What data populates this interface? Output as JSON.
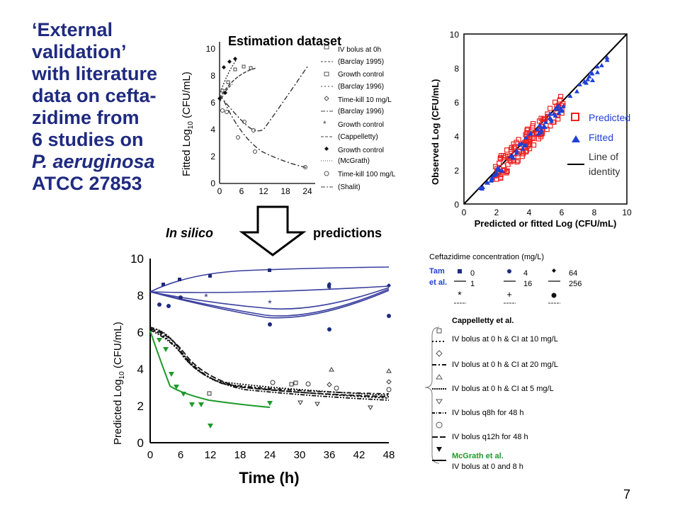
{
  "title_lines": [
    "‘External",
    "validation’",
    "with literature",
    "data on cefta-",
    "zidime from",
    "6 studies on",
    "P. aeruginosa",
    "ATCC 27853"
  ],
  "estimation": {
    "heading": "Estimation dataset",
    "ylabel_main": "Fitted Log",
    "ylabel_sub": "10",
    "ylabel_unit": " (CFU/mL)",
    "y_ticks": [
      "0",
      "2",
      "4",
      "6",
      "8",
      "10"
    ],
    "x_ticks": [
      "0",
      "6",
      "12",
      "18",
      "24"
    ],
    "legend": [
      {
        "l1": "IV bolus at 0h",
        "l2": "(Barclay 1995)"
      },
      {
        "l1": "Growth control",
        "l2": "(Barclay 1996)"
      },
      {
        "l1": "Time-kill 10 mg/L",
        "l2": "(Barclay 1996)"
      },
      {
        "l1": "Growth control",
        "l2": "(Cappelletty)"
      },
      {
        "l1": "Growth control",
        "l2": "(McGrath)"
      },
      {
        "l1": "Time-kill 100 mg/L",
        "l2": "(Shalit)"
      }
    ]
  },
  "scatter": {
    "ylabel": "Observed Log (CFU/mL)",
    "xlabel": "Predicted or fitted Log (CFU/mL)",
    "ticks": [
      "0",
      "2",
      "4",
      "6",
      "8",
      "10"
    ],
    "legend": {
      "predicted": "Predicted",
      "fitted": "Fitted",
      "identity_l1": "Line of",
      "identity_l2": "identity"
    },
    "colors": {
      "predicted": "#ee2020",
      "fitted": "#1f3fd6"
    }
  },
  "arrow": {
    "left": "In silico",
    "right": "predictions"
  },
  "prediction": {
    "ylabel_main": "Predicted  Log",
    "ylabel_sub": "10",
    "ylabel_unit": " (CFU/mL)",
    "xlabel": "Time (h)",
    "y_ticks": [
      "0",
      "2",
      "4",
      "6",
      "8",
      "10"
    ],
    "x_ticks": [
      "0",
      "6",
      "12",
      "18",
      "24",
      "30",
      "36",
      "42",
      "48"
    ]
  },
  "right_legend": {
    "conc_title": "Ceftazidime concentration (mg/L)",
    "tam": "Tam",
    "etal": "et al.",
    "c0": "0",
    "c1": "1",
    "c4": "4",
    "c16": "16",
    "c64": "64",
    "c256": "256",
    "cappelletty_title": "Cappelletty et al.",
    "cappelletty_items": [
      "IV bolus at 0 h & CI at 10 mg/L",
      "IV bolus at 0 h & CI at 20 mg/L",
      "IV bolus at 0 h & CI at 5 mg/L",
      "IV bolus q8h for 48 h",
      "IV bolus q12h for 48 h"
    ],
    "mcgrath_title": "McGrath et al.",
    "mcgrath_item": "IV bolus at 0 and 8 h"
  },
  "page_number": "7",
  "colors": {
    "title": "#1f2a80",
    "blue_curve": "#3a3f9e",
    "green": "#1e9a2a"
  }
}
